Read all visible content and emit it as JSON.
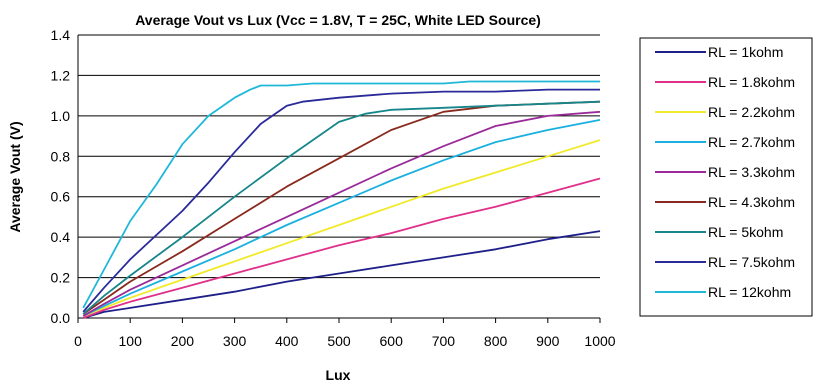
{
  "chart_data": {
    "type": "line",
    "title": "Average Vout vs Lux (Vcc = 1.8V, T = 25C, White LED Source)",
    "xlabel": "Lux",
    "ylabel": "Average Vout (V)",
    "xlim": [
      0,
      1000
    ],
    "ylim": [
      0,
      1.4
    ],
    "xticks": [
      "0",
      "100",
      "200",
      "300",
      "400",
      "500",
      "600",
      "700",
      "800",
      "900",
      "1000"
    ],
    "yticks": [
      "0.0",
      "0.2",
      "0.4",
      "0.6",
      "0.8",
      "1.0",
      "1.2",
      "1.4"
    ],
    "grid": "horizontal",
    "legend_position": "right",
    "series": [
      {
        "name": "RL = 1kohm",
        "color": "#1f1f8a",
        "x": [
          10,
          50,
          100,
          200,
          300,
          400,
          500,
          600,
          700,
          800,
          900,
          1000
        ],
        "y": [
          0.0,
          0.03,
          0.05,
          0.09,
          0.13,
          0.18,
          0.22,
          0.26,
          0.3,
          0.34,
          0.39,
          0.43
        ]
      },
      {
        "name": "RL = 1.8kohm",
        "color": "#e0308a",
        "x": [
          10,
          50,
          100,
          200,
          300,
          400,
          500,
          600,
          700,
          800,
          900,
          1000
        ],
        "y": [
          0.0,
          0.04,
          0.08,
          0.15,
          0.22,
          0.29,
          0.36,
          0.42,
          0.49,
          0.55,
          0.62,
          0.69
        ]
      },
      {
        "name": "RL = 2.2kohm",
        "color": "#f0ea2a",
        "x": [
          10,
          50,
          100,
          200,
          300,
          400,
          500,
          600,
          700,
          800,
          900,
          1000
        ],
        "y": [
          0.01,
          0.05,
          0.1,
          0.19,
          0.28,
          0.37,
          0.46,
          0.55,
          0.64,
          0.72,
          0.8,
          0.88
        ]
      },
      {
        "name": "RL = 2.7kohm",
        "color": "#1ab0e0",
        "x": [
          10,
          50,
          100,
          200,
          300,
          400,
          500,
          600,
          700,
          800,
          900,
          1000
        ],
        "y": [
          0.01,
          0.06,
          0.12,
          0.23,
          0.34,
          0.46,
          0.57,
          0.68,
          0.78,
          0.87,
          0.93,
          0.98
        ]
      },
      {
        "name": "RL = 3.3kohm",
        "color": "#9a2a9a",
        "x": [
          10,
          50,
          100,
          200,
          300,
          400,
          500,
          600,
          700,
          800,
          900,
          1000
        ],
        "y": [
          0.01,
          0.07,
          0.14,
          0.26,
          0.38,
          0.5,
          0.62,
          0.74,
          0.85,
          0.95,
          1.0,
          1.02
        ]
      },
      {
        "name": "RL = 4.3kohm",
        "color": "#8a2a1e",
        "x": [
          10,
          50,
          100,
          200,
          300,
          400,
          500,
          600,
          700,
          800,
          900,
          1000
        ],
        "y": [
          0.02,
          0.09,
          0.18,
          0.33,
          0.49,
          0.65,
          0.79,
          0.93,
          1.02,
          1.05,
          1.06,
          1.07
        ]
      },
      {
        "name": "RL = 5kohm",
        "color": "#16868a",
        "x": [
          10,
          50,
          100,
          200,
          300,
          400,
          500,
          550,
          600,
          700,
          800,
          900,
          1000
        ],
        "y": [
          0.02,
          0.11,
          0.21,
          0.4,
          0.6,
          0.79,
          0.97,
          1.01,
          1.03,
          1.04,
          1.05,
          1.06,
          1.07
        ]
      },
      {
        "name": "RL = 7.5kohm",
        "color": "#2a2a9a",
        "x": [
          10,
          50,
          100,
          150,
          200,
          250,
          300,
          350,
          400,
          430,
          500,
          600,
          700,
          800,
          900,
          1000
        ],
        "y": [
          0.03,
          0.15,
          0.29,
          0.41,
          0.53,
          0.67,
          0.82,
          0.96,
          1.05,
          1.07,
          1.09,
          1.11,
          1.12,
          1.12,
          1.13,
          1.13
        ]
      },
      {
        "name": "RL = 12kohm",
        "color": "#1fb8d8",
        "x": [
          10,
          50,
          100,
          150,
          200,
          250,
          300,
          330,
          350,
          400,
          450,
          500,
          600,
          700,
          750,
          800,
          900,
          1000
        ],
        "y": [
          0.05,
          0.24,
          0.48,
          0.66,
          0.86,
          1.0,
          1.09,
          1.13,
          1.15,
          1.15,
          1.16,
          1.16,
          1.16,
          1.16,
          1.17,
          1.17,
          1.17,
          1.17
        ]
      }
    ]
  }
}
